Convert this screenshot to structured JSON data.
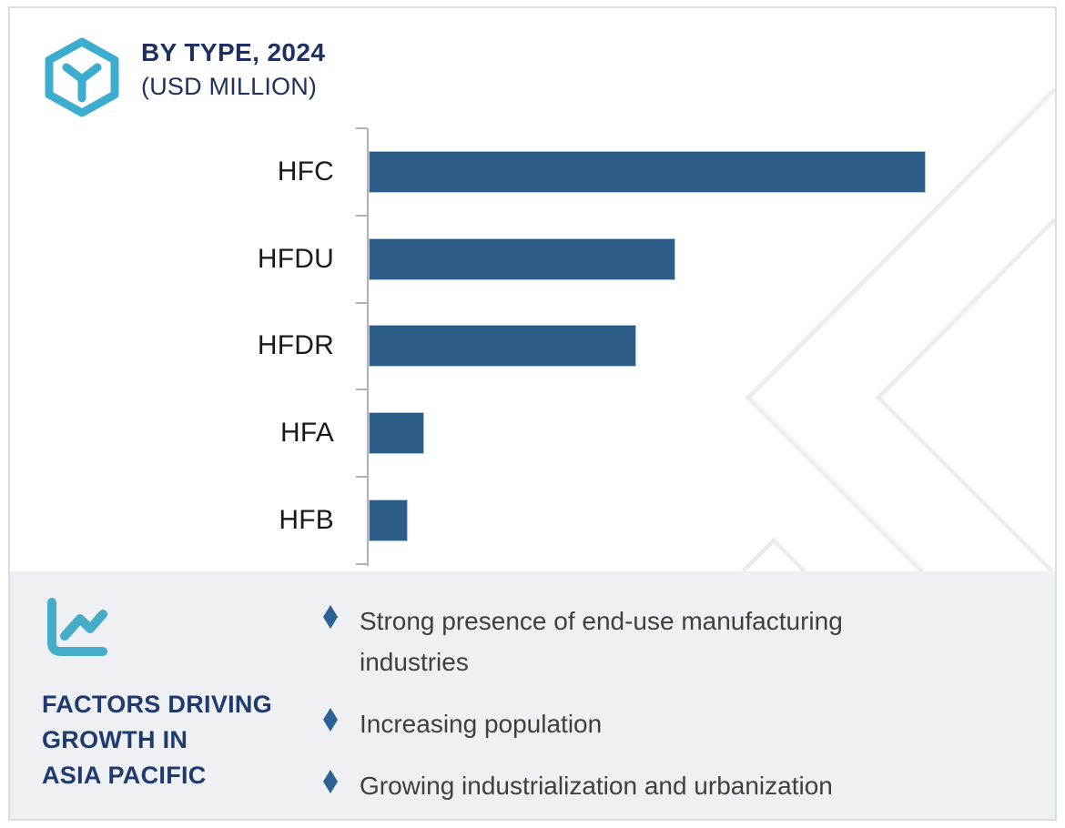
{
  "header": {
    "logo_icon": "hexagon-cube-logo",
    "title": "BY TYPE, 2024",
    "subtitle": "(USD MILLION)"
  },
  "chart_data": {
    "type": "bar",
    "orientation": "horizontal",
    "title": "BY TYPE, 2024 (USD MILLION)",
    "categories": [
      "HFC",
      "HFDU",
      "HFDR",
      "HFA",
      "HFB"
    ],
    "values": [
      100,
      55,
      48,
      10,
      7
    ],
    "values_note": "relative bar lengths, no numeric axis labels shown",
    "xlabel": "",
    "ylabel": "",
    "grid": false,
    "legend": false,
    "bar_color": "#2d5e8a"
  },
  "factors": {
    "icon": "line-chart-icon",
    "bullet_icon": "diamond-bullet",
    "heading_lines": [
      "FACTORS DRIVING",
      "GROWTH IN",
      "ASIA PACIFIC"
    ],
    "bullets": [
      "Strong presence of end-use manufacturing industries",
      "Increasing population",
      "Growing industrialization and urbanization"
    ]
  },
  "colors": {
    "bar_fill": "#2d5e8a",
    "accent_teal": "#3cadce",
    "title_navy": "#1e3060",
    "heading_navy": "#1e3a6e",
    "bullet_diamond": "#2c6195",
    "body_text": "#3f3f3f",
    "category_label": "#1a1a1a",
    "axis_gray": "#b0b0b0",
    "panel_bg": "#eef0f4",
    "watermark": "#ededed",
    "frame_border": "#dadcdf"
  }
}
